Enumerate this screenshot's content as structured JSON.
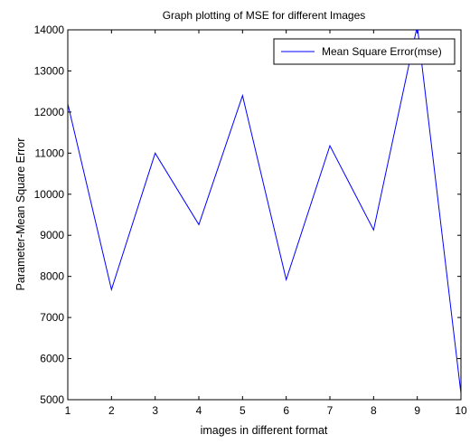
{
  "chart_data": {
    "type": "line",
    "title": "Graph plotting of MSE for different Images",
    "xlabel": "images in different format",
    "ylabel": "Parameter-Mean Square Error",
    "xlim": [
      1,
      10
    ],
    "ylim": [
      5000,
      14000
    ],
    "x_ticks": [
      "1",
      "2",
      "3",
      "4",
      "5",
      "6",
      "7",
      "8",
      "9",
      "10"
    ],
    "y_ticks": [
      "5000",
      "6000",
      "7000",
      "8000",
      "9000",
      "10000",
      "11000",
      "12000",
      "13000",
      "14000"
    ],
    "grid": false,
    "legend_position": "top-right",
    "series": [
      {
        "name": "Mean Square Error(mse)",
        "color": "#0000ff",
        "x": [
          1,
          2,
          3,
          4,
          5,
          6,
          7,
          8,
          9,
          10
        ],
        "values": [
          12200,
          7680,
          11000,
          9260,
          12400,
          7920,
          11180,
          9130,
          14100,
          5150
        ]
      }
    ]
  }
}
